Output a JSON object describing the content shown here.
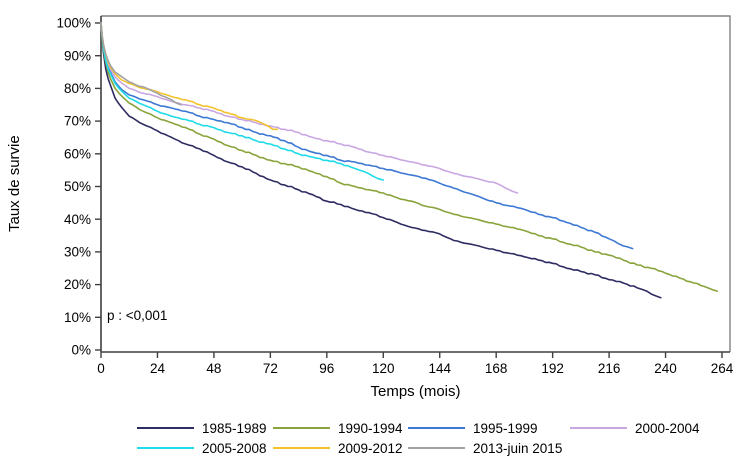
{
  "figure": {
    "y_axis_label": "Taux de survie",
    "x_axis_label": "Temps (mois)",
    "p_value_label": "p : <0,001"
  },
  "chart_data": {
    "type": "line",
    "title": "",
    "xlabel": "Temps (mois)",
    "ylabel": "Taux de survie",
    "xlim": [
      0,
      264
    ],
    "ylim": [
      0,
      100
    ],
    "grid": false,
    "legend_position": "bottom",
    "annotation": "p : <0,001",
    "x_ticks": [
      {
        "value": 0,
        "label": "0"
      },
      {
        "value": 24,
        "label": "24"
      },
      {
        "value": 48,
        "label": "48"
      },
      {
        "value": 72,
        "label": "72"
      },
      {
        "value": 96,
        "label": "96"
      },
      {
        "value": 120,
        "label": "120"
      },
      {
        "value": 144,
        "label": "144"
      },
      {
        "value": 168,
        "label": "168"
      },
      {
        "value": 192,
        "label": "192"
      },
      {
        "value": 216,
        "label": "216"
      },
      {
        "value": 240,
        "label": "240"
      },
      {
        "value": 264,
        "label": "264"
      }
    ],
    "y_ticks": [
      {
        "value": 0,
        "label": "0%"
      },
      {
        "value": 10,
        "label": "10%"
      },
      {
        "value": 20,
        "label": "20%"
      },
      {
        "value": 30,
        "label": "30%"
      },
      {
        "value": 40,
        "label": "40%"
      },
      {
        "value": 50,
        "label": "50%"
      },
      {
        "value": 60,
        "label": "60%"
      },
      {
        "value": 70,
        "label": "70%"
      },
      {
        "value": 80,
        "label": "80%"
      },
      {
        "value": 90,
        "label": "90%"
      },
      {
        "value": 100,
        "label": "100%"
      }
    ],
    "series": [
      {
        "name": "1985-1989",
        "color": "#2f2c62",
        "legend_row": 0,
        "legend_col": 0,
        "points": [
          [
            0,
            100
          ],
          [
            0.5,
            95
          ],
          [
            1,
            91
          ],
          [
            2,
            86
          ],
          [
            3,
            83
          ],
          [
            4,
            81
          ],
          [
            6,
            77
          ],
          [
            9,
            74
          ],
          [
            12,
            71.5
          ],
          [
            18,
            69
          ],
          [
            24,
            67
          ],
          [
            30,
            65
          ],
          [
            36,
            63
          ],
          [
            42,
            61.5
          ],
          [
            48,
            59.5
          ],
          [
            54,
            57.5
          ],
          [
            60,
            56
          ],
          [
            66,
            54
          ],
          [
            72,
            52
          ],
          [
            78,
            50.5
          ],
          [
            84,
            49
          ],
          [
            90,
            47.5
          ],
          [
            96,
            45.5
          ],
          [
            102,
            44.5
          ],
          [
            108,
            43
          ],
          [
            114,
            42
          ],
          [
            120,
            40.5
          ],
          [
            126,
            39
          ],
          [
            132,
            37.5
          ],
          [
            138,
            36.5
          ],
          [
            144,
            35.5
          ],
          [
            150,
            33.5
          ],
          [
            156,
            32.5
          ],
          [
            162,
            31.5
          ],
          [
            168,
            30.5
          ],
          [
            174,
            29.5
          ],
          [
            180,
            28.5
          ],
          [
            186,
            27.5
          ],
          [
            192,
            26.5
          ],
          [
            198,
            25
          ],
          [
            204,
            24
          ],
          [
            210,
            23
          ],
          [
            216,
            21.5
          ],
          [
            222,
            20.5
          ],
          [
            228,
            19
          ],
          [
            232,
            18
          ],
          [
            236,
            16.5
          ],
          [
            238,
            16
          ]
        ]
      },
      {
        "name": "1990-1994",
        "color": "#8aa43c",
        "legend_row": 0,
        "legend_col": 1,
        "points": [
          [
            0,
            100
          ],
          [
            0.5,
            95
          ],
          [
            1,
            92
          ],
          [
            2,
            88
          ],
          [
            3,
            85
          ],
          [
            4,
            83
          ],
          [
            6,
            80
          ],
          [
            9,
            77.5
          ],
          [
            12,
            75.5
          ],
          [
            18,
            73
          ],
          [
            24,
            71
          ],
          [
            30,
            69.5
          ],
          [
            36,
            68
          ],
          [
            42,
            66
          ],
          [
            48,
            64.5
          ],
          [
            54,
            62.5
          ],
          [
            60,
            61
          ],
          [
            66,
            59.5
          ],
          [
            72,
            58
          ],
          [
            78,
            57
          ],
          [
            84,
            56
          ],
          [
            90,
            54.5
          ],
          [
            96,
            53
          ],
          [
            102,
            51
          ],
          [
            108,
            50
          ],
          [
            114,
            49
          ],
          [
            120,
            48
          ],
          [
            126,
            46.5
          ],
          [
            132,
            45.5
          ],
          [
            138,
            44
          ],
          [
            144,
            43
          ],
          [
            150,
            41.5
          ],
          [
            156,
            40.5
          ],
          [
            162,
            39.5
          ],
          [
            168,
            38.5
          ],
          [
            174,
            37.5
          ],
          [
            180,
            36.5
          ],
          [
            186,
            35
          ],
          [
            192,
            34
          ],
          [
            198,
            32.5
          ],
          [
            204,
            31.5
          ],
          [
            210,
            30
          ],
          [
            216,
            29
          ],
          [
            222,
            27.5
          ],
          [
            228,
            26
          ],
          [
            234,
            25
          ],
          [
            240,
            23.5
          ],
          [
            246,
            22
          ],
          [
            252,
            20.5
          ],
          [
            258,
            19
          ],
          [
            262,
            18
          ]
        ]
      },
      {
        "name": "1995-1999",
        "color": "#3d79d4",
        "legend_row": 0,
        "legend_col": 2,
        "points": [
          [
            0,
            100
          ],
          [
            0.5,
            96
          ],
          [
            1,
            93
          ],
          [
            2,
            89
          ],
          [
            3,
            86.5
          ],
          [
            4,
            85
          ],
          [
            6,
            82
          ],
          [
            9,
            79.5
          ],
          [
            12,
            78
          ],
          [
            18,
            76.5
          ],
          [
            24,
            75
          ],
          [
            30,
            74
          ],
          [
            36,
            73
          ],
          [
            42,
            71.5
          ],
          [
            48,
            70.5
          ],
          [
            54,
            69.5
          ],
          [
            60,
            68
          ],
          [
            66,
            66.5
          ],
          [
            72,
            65.5
          ],
          [
            78,
            64
          ],
          [
            84,
            62
          ],
          [
            90,
            60.5
          ],
          [
            96,
            59.5
          ],
          [
            102,
            58
          ],
          [
            108,
            57.5
          ],
          [
            114,
            56.5
          ],
          [
            120,
            55.5
          ],
          [
            126,
            54.5
          ],
          [
            132,
            53.5
          ],
          [
            138,
            52.5
          ],
          [
            144,
            51
          ],
          [
            150,
            49.5
          ],
          [
            156,
            48
          ],
          [
            162,
            46.5
          ],
          [
            168,
            45
          ],
          [
            174,
            44
          ],
          [
            180,
            43
          ],
          [
            186,
            41.5
          ],
          [
            192,
            40.5
          ],
          [
            198,
            39
          ],
          [
            204,
            37.5
          ],
          [
            210,
            36
          ],
          [
            216,
            34
          ],
          [
            220,
            32.5
          ],
          [
            224,
            31.5
          ],
          [
            226,
            31
          ]
        ]
      },
      {
        "name": "2000-2004",
        "color": "#c9a7e1",
        "legend_row": 0,
        "legend_col": 3,
        "points": [
          [
            0,
            100
          ],
          [
            0.5,
            96
          ],
          [
            1,
            93.5
          ],
          [
            2,
            90
          ],
          [
            3,
            87.5
          ],
          [
            4,
            86
          ],
          [
            6,
            83.5
          ],
          [
            9,
            81.5
          ],
          [
            12,
            80
          ],
          [
            18,
            78.5
          ],
          [
            24,
            77.5
          ],
          [
            30,
            76
          ],
          [
            36,
            75
          ],
          [
            42,
            74
          ],
          [
            48,
            73
          ],
          [
            54,
            71.5
          ],
          [
            60,
            70.5
          ],
          [
            66,
            69.5
          ],
          [
            72,
            68.5
          ],
          [
            78,
            67.5
          ],
          [
            84,
            66.5
          ],
          [
            90,
            65
          ],
          [
            96,
            64
          ],
          [
            102,
            63
          ],
          [
            108,
            62
          ],
          [
            114,
            60.5
          ],
          [
            120,
            59.5
          ],
          [
            126,
            58.5
          ],
          [
            132,
            57.5
          ],
          [
            138,
            56.5
          ],
          [
            144,
            55.5
          ],
          [
            150,
            54
          ],
          [
            156,
            53
          ],
          [
            162,
            52
          ],
          [
            168,
            51
          ],
          [
            172,
            49.5
          ],
          [
            175,
            48.5
          ],
          [
            177,
            48
          ]
        ]
      },
      {
        "name": "2005-2008",
        "color": "#1fdbe8",
        "legend_row": 1,
        "legend_col": 0,
        "points": [
          [
            0,
            100
          ],
          [
            0.5,
            95.5
          ],
          [
            1,
            92.5
          ],
          [
            2,
            88.5
          ],
          [
            3,
            86
          ],
          [
            4,
            84.5
          ],
          [
            6,
            81.5
          ],
          [
            9,
            79
          ],
          [
            12,
            77
          ],
          [
            18,
            75
          ],
          [
            24,
            73
          ],
          [
            30,
            71.5
          ],
          [
            36,
            70.5
          ],
          [
            42,
            69
          ],
          [
            48,
            68
          ],
          [
            54,
            66.5
          ],
          [
            60,
            65.5
          ],
          [
            66,
            64
          ],
          [
            72,
            63
          ],
          [
            78,
            61.5
          ],
          [
            84,
            60
          ],
          [
            90,
            59
          ],
          [
            96,
            58
          ],
          [
            102,
            57
          ],
          [
            108,
            55.5
          ],
          [
            112,
            54.5
          ],
          [
            116,
            53
          ],
          [
            120,
            52
          ]
        ]
      },
      {
        "name": "2009-2012",
        "color": "#f3c32e",
        "legend_row": 1,
        "legend_col": 1,
        "points": [
          [
            0,
            100
          ],
          [
            0.5,
            96
          ],
          [
            1,
            93.5
          ],
          [
            2,
            90.5
          ],
          [
            3,
            88
          ],
          [
            4,
            86.5
          ],
          [
            6,
            84.5
          ],
          [
            9,
            82.5
          ],
          [
            12,
            81.5
          ],
          [
            18,
            80
          ],
          [
            24,
            79
          ],
          [
            30,
            77.5
          ],
          [
            36,
            76.5
          ],
          [
            42,
            75
          ],
          [
            48,
            74
          ],
          [
            54,
            72.5
          ],
          [
            60,
            71
          ],
          [
            64,
            70.5
          ],
          [
            68,
            69.5
          ],
          [
            71,
            68.5
          ],
          [
            73,
            67.5
          ],
          [
            75,
            67.5
          ]
        ]
      },
      {
        "name": "2013-juin 2015",
        "color": "#a2a2a2",
        "legend_row": 1,
        "legend_col": 2,
        "points": [
          [
            0,
            100
          ],
          [
            0.5,
            96
          ],
          [
            1,
            93.5
          ],
          [
            2,
            90.5
          ],
          [
            3,
            88.5
          ],
          [
            4,
            87
          ],
          [
            6,
            85
          ],
          [
            8,
            84
          ],
          [
            10,
            83
          ],
          [
            12,
            82
          ],
          [
            15,
            81
          ],
          [
            18,
            80.5
          ],
          [
            21,
            79.5
          ],
          [
            24,
            78.5
          ],
          [
            27,
            77.5
          ],
          [
            30,
            76.5
          ],
          [
            32,
            75.5
          ],
          [
            34,
            75
          ]
        ]
      }
    ]
  }
}
